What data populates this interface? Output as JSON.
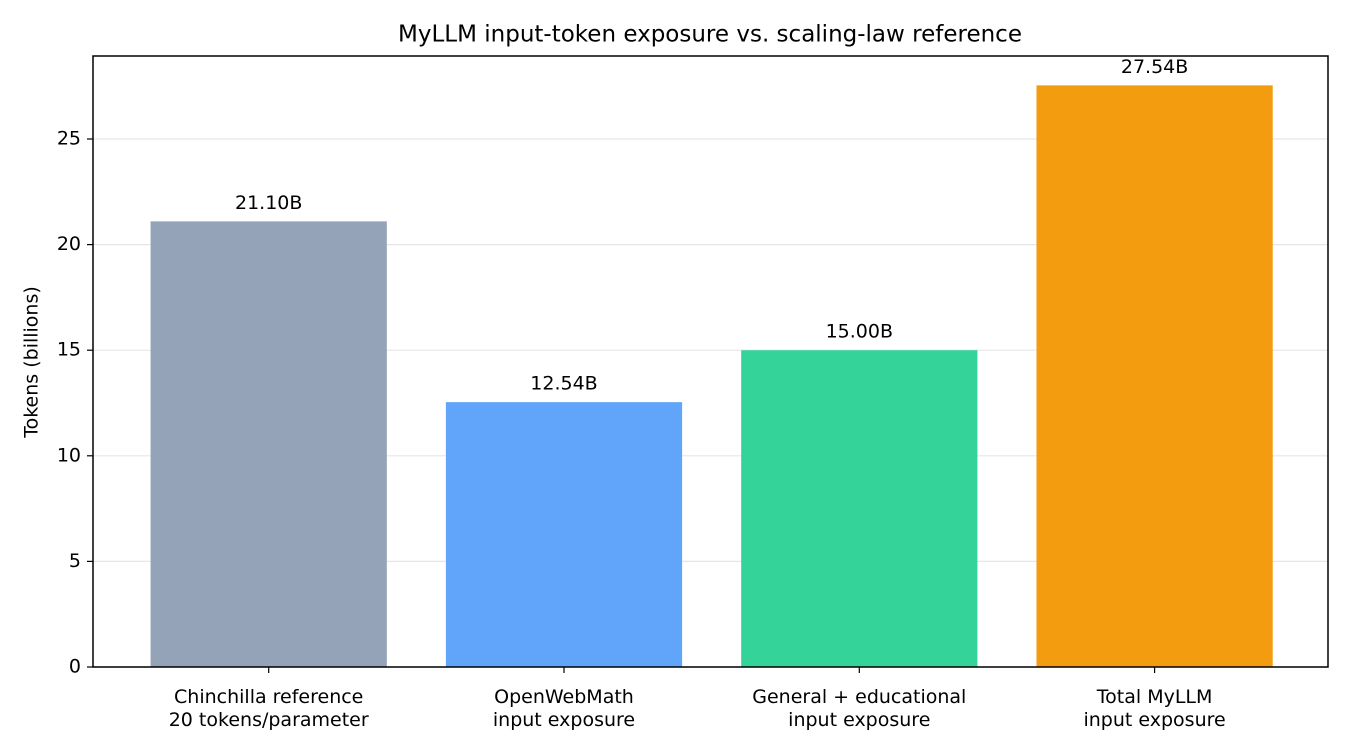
{
  "chart_data": {
    "type": "bar",
    "title": "MyLLM input-token exposure vs. scaling-law reference",
    "y_label": "Tokens (billions)",
    "categories": [
      "Chinchilla reference\n20 tokens/parameter",
      "OpenWebMath\ninput exposure",
      "General + educational\ninput exposure",
      "Total MyLLM\ninput exposure"
    ],
    "values": [
      21.1,
      12.54,
      15.0,
      27.54
    ],
    "value_labels": [
      "21.10B",
      "12.54B",
      "15.00B",
      "27.54B"
    ],
    "colors": [
      "#94a3b8",
      "#60a5fa",
      "#34d399",
      "#f39c0f"
    ],
    "ylim": [
      0,
      28.93
    ],
    "yticks": [
      0,
      5,
      10,
      15,
      20,
      25
    ],
    "grid": true
  }
}
